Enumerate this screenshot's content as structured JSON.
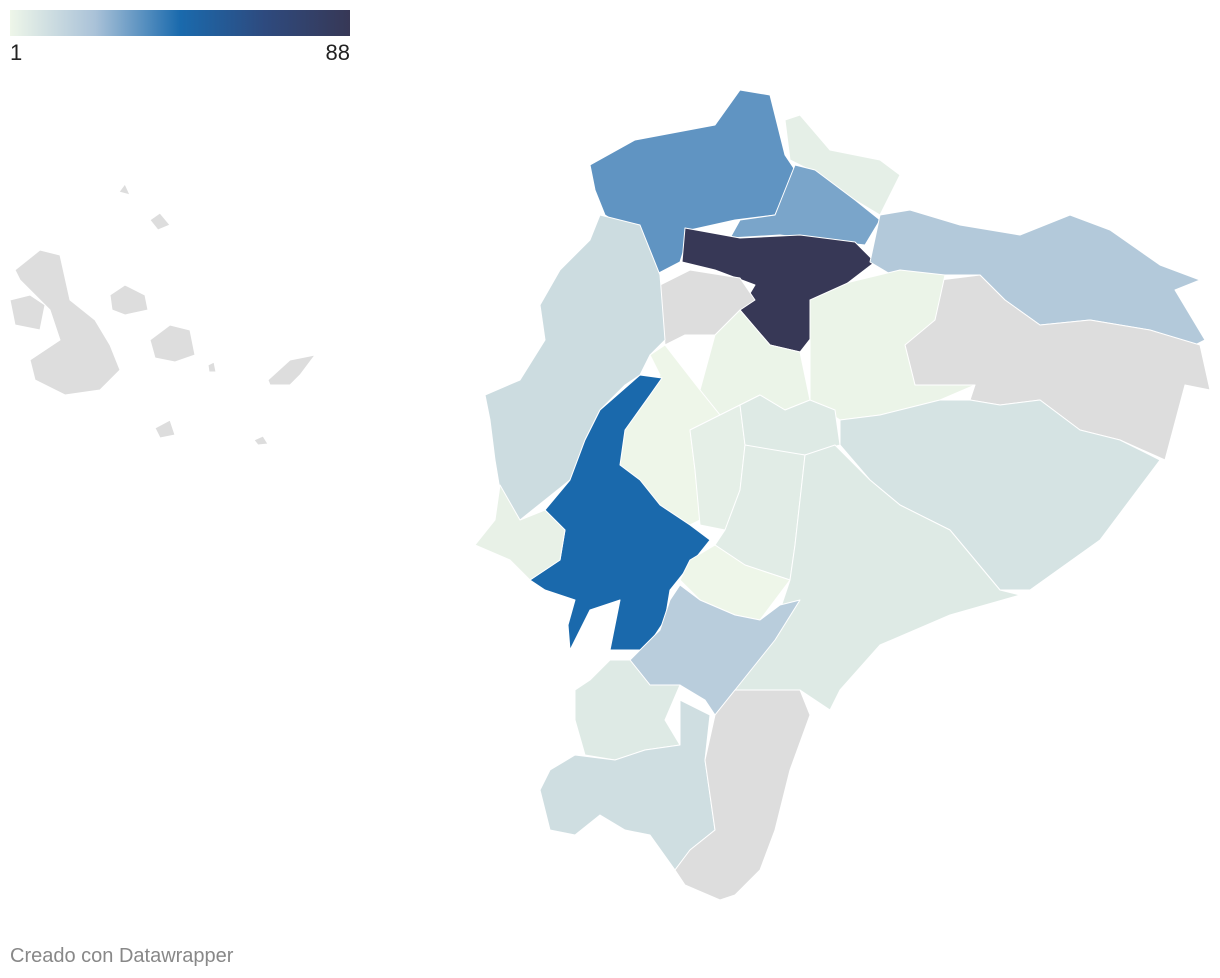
{
  "legend": {
    "min": 1,
    "max": 88,
    "colors": [
      "#eef6e9",
      "#aac2d8",
      "#1a6aad",
      "#2e4a7e",
      "#373856"
    ]
  },
  "regions": {
    "values": [
      34,
      4,
      30,
      88,
      20,
      null,
      2,
      null,
      12,
      2,
      1,
      45,
      3,
      4,
      6,
      5,
      1,
      9,
      6,
      18,
      6,
      11,
      null,
      null,
      null,
      null,
      null,
      null,
      null,
      null,
      null,
      null,
      null
    ],
    "no_data_color": "#dddddd"
  },
  "credit": "Creado con Datawrapper"
}
